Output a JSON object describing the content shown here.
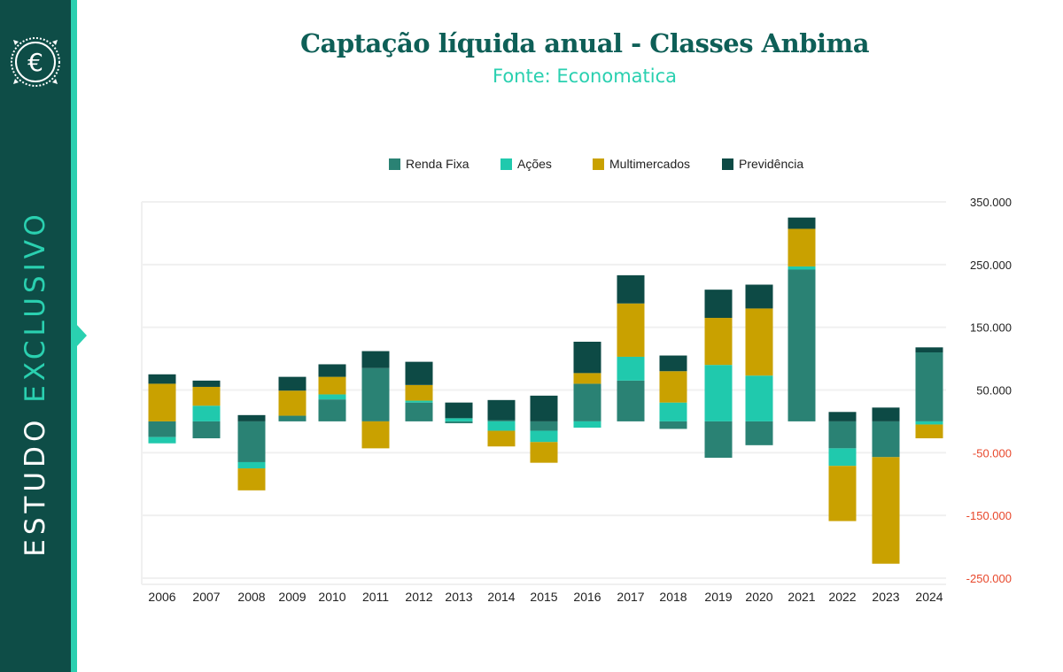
{
  "sidebar": {
    "vertical_text_1": "ESTUDO",
    "vertical_text_2": "EXCLUSIVO",
    "logo_letter": "€"
  },
  "header": {
    "title": "Captação líquida anual - Classes Anbima",
    "subtitle": "Fonte: Economatica"
  },
  "colors": {
    "renda_fixa": "#2a8274",
    "acoes": "#20c9ad",
    "multimercados": "#c9a100",
    "previdencia": "#0d4a45",
    "negative_tick": "#e8472b",
    "positive_tick": "#222222"
  },
  "chart_data": {
    "type": "bar",
    "stacked": true,
    "categories": [
      "2006",
      "2007",
      "2008",
      "2009",
      "2010",
      "2011",
      "2012",
      "2013",
      "2014",
      "2015",
      "2016",
      "2017",
      "2018",
      "2019",
      "2020",
      "2021",
      "2022",
      "2023",
      "2024"
    ],
    "series": [
      {
        "name": "Renda Fixa",
        "key": "renda_fixa",
        "values": [
          -25000,
          -27000,
          -65000,
          9000,
          35000,
          85000,
          30000,
          -3000,
          2000,
          -15000,
          60000,
          65000,
          -12000,
          -58000,
          -38000,
          242000,
          -43000,
          -57000,
          110000
        ]
      },
      {
        "name": "Ações",
        "key": "acoes",
        "values": [
          -10000,
          25000,
          -10000,
          0,
          8000,
          0,
          3000,
          5000,
          -15000,
          -18000,
          -10000,
          38000,
          30000,
          90000,
          73000,
          5000,
          -28000,
          0,
          -5000
        ]
      },
      {
        "name": "Multimercados",
        "key": "multimercados",
        "values": [
          60000,
          30000,
          -35000,
          40000,
          28000,
          -43000,
          25000,
          0,
          -25000,
          -33000,
          17000,
          85000,
          50000,
          75000,
          107000,
          60000,
          -88000,
          -170000,
          -22000
        ]
      },
      {
        "name": "Previdência",
        "key": "previdencia",
        "values": [
          15000,
          10000,
          10000,
          22000,
          20000,
          27000,
          37000,
          25000,
          32000,
          41000,
          50000,
          45000,
          25000,
          45000,
          38000,
          18000,
          15000,
          22000,
          8000
        ]
      }
    ],
    "ylim": [
      -250000,
      350000
    ],
    "yticks": [
      350000,
      250000,
      150000,
      50000,
      -50000,
      -150000,
      -250000
    ],
    "ytick_labels": [
      "350.000",
      "250.000",
      "150.000",
      "50.000",
      "-50.000",
      "-150.000",
      "-250.000"
    ],
    "grid": true,
    "legend_position": "top-center",
    "y_axis_side": "right"
  }
}
